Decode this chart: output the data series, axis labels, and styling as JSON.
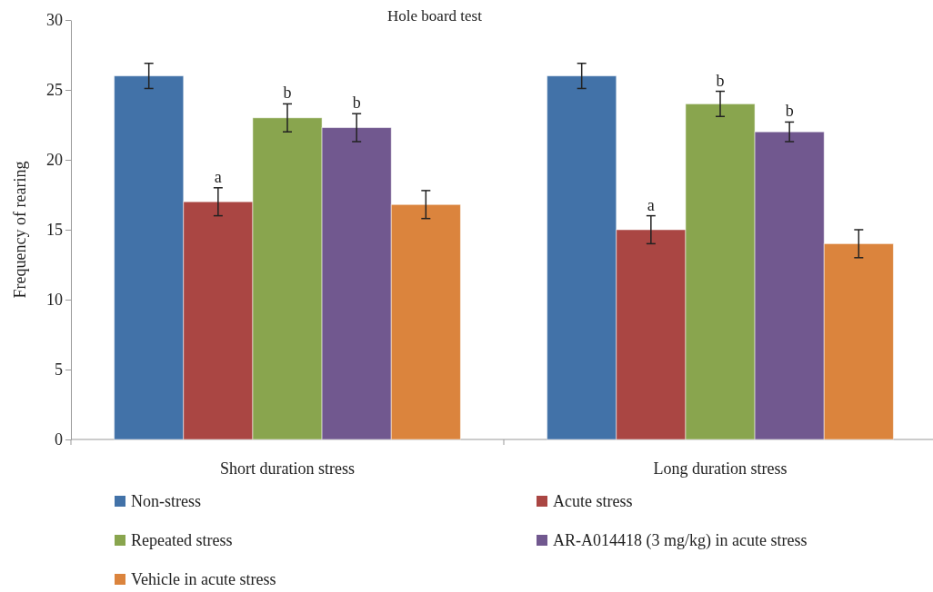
{
  "chart_data": {
    "type": "bar",
    "title": "Hole board test",
    "ylabel": "Frequency of rearing",
    "categories": [
      "Short duration stress",
      "Long duration stress"
    ],
    "series": [
      {
        "name": "Non-stress",
        "color": "#4272a8",
        "values": [
          26,
          26
        ],
        "errors": [
          0.9,
          0.9
        ]
      },
      {
        "name": "Acute stress",
        "color": "#aa4643",
        "values": [
          17,
          15
        ],
        "errors": [
          1,
          1
        ],
        "value_labels": [
          "a",
          "a"
        ]
      },
      {
        "name": "Repeated stress",
        "color": "#89a54e",
        "values": [
          23,
          24
        ],
        "errors": [
          1,
          0.9
        ],
        "value_labels": [
          "b",
          "b"
        ]
      },
      {
        "name": "AR-A014418 (3 mg/kg) in acute stress",
        "color": "#71588f",
        "values": [
          22.3,
          22
        ],
        "errors": [
          1,
          0.7
        ],
        "value_labels": [
          "b",
          "b"
        ]
      },
      {
        "name": "Vehicle in acute stress",
        "color": "#db843d",
        "values": [
          16.8,
          14
        ],
        "errors": [
          1,
          1
        ]
      }
    ],
    "ylim": [
      0,
      30
    ],
    "yticks": [
      0,
      5,
      10,
      15,
      20,
      25,
      30
    ],
    "grid": false,
    "legend": "bottom"
  }
}
